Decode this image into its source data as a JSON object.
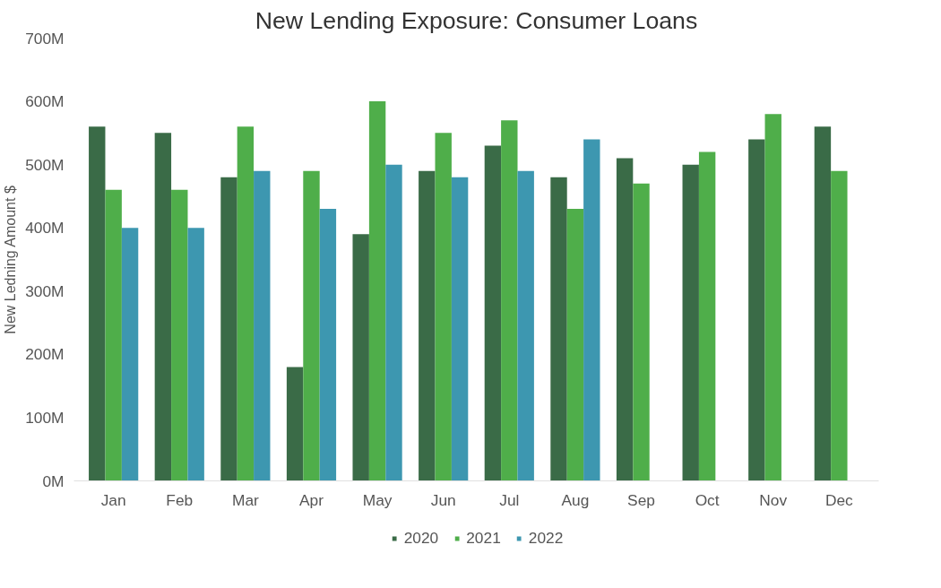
{
  "chart_data": {
    "type": "bar",
    "title": "New Lending Exposure: Consumer Loans",
    "ylabel": "New Ledning Amount $",
    "categories": [
      "Jan",
      "Feb",
      "Mar",
      "Apr",
      "May",
      "Jun",
      "Jul",
      "Aug",
      "Sep",
      "Oct",
      "Nov",
      "Dec"
    ],
    "series": [
      {
        "name": "2020",
        "color": "#3a6b47",
        "values": [
          560,
          550,
          480,
          180,
          390,
          490,
          530,
          480,
          510,
          500,
          540,
          560
        ]
      },
      {
        "name": "2021",
        "color": "#4fae4a",
        "values": [
          460,
          460,
          560,
          490,
          600,
          550,
          570,
          430,
          470,
          520,
          580,
          490
        ]
      },
      {
        "name": "2022",
        "color": "#3d97b0",
        "values": [
          400,
          400,
          490,
          430,
          500,
          480,
          490,
          540,
          null,
          null,
          null,
          null
        ]
      }
    ],
    "ylim": [
      0,
      700
    ],
    "yticks": [
      {
        "value": 0,
        "label": "0M"
      },
      {
        "value": 100,
        "label": "100M"
      },
      {
        "value": 200,
        "label": "200M"
      },
      {
        "value": 300,
        "label": "300M"
      },
      {
        "value": 400,
        "label": "400M"
      },
      {
        "value": 500,
        "label": "500M"
      },
      {
        "value": 600,
        "label": "600M"
      },
      {
        "value": 700,
        "label": "700M"
      }
    ],
    "grid": false,
    "legend": "bottom"
  }
}
